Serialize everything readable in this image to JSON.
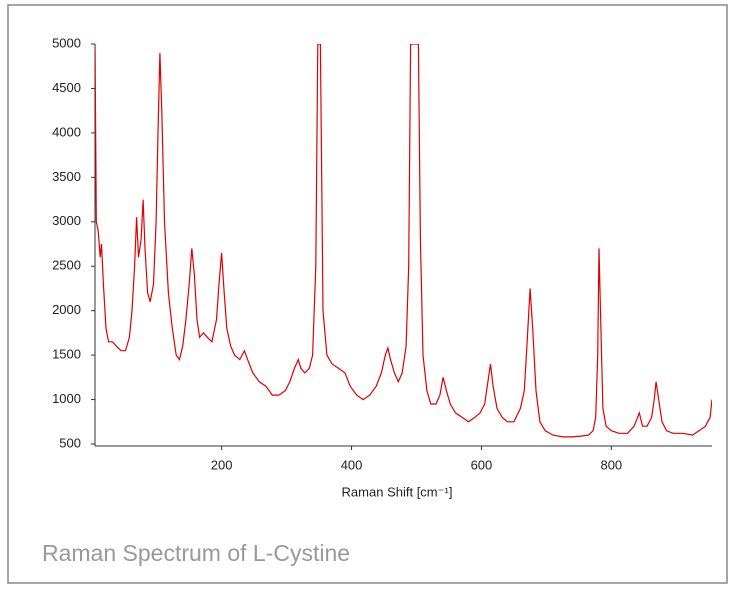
{
  "chart_data": {
    "type": "line",
    "title": "Raman Spectrum of L-Cystine",
    "x_label": "Raman Shift [cm⁻¹]",
    "color": "#e00000",
    "xlim": [
      5,
      955
    ],
    "xticks": [
      200,
      400,
      600,
      800
    ],
    "ylim": [
      500,
      5000
    ],
    "yticks": [
      500,
      1000,
      1500,
      2000,
      2500,
      3000,
      3500,
      4000,
      4500,
      5000
    ],
    "x": [
      5,
      7,
      10,
      13,
      15,
      18,
      22,
      26,
      32,
      38,
      45,
      52,
      58,
      62,
      66,
      69,
      72,
      76,
      79,
      82,
      86,
      90,
      95,
      99,
      102,
      105,
      108,
      112,
      118,
      124,
      130,
      135,
      140,
      145,
      150,
      154,
      158,
      162,
      166,
      172,
      178,
      185,
      192,
      196,
      200,
      204,
      208,
      214,
      220,
      228,
      235,
      240,
      248,
      258,
      268,
      278,
      288,
      298,
      305,
      312,
      318,
      322,
      328,
      335,
      340,
      345,
      348,
      352,
      356,
      362,
      370,
      380,
      390,
      398,
      408,
      418,
      428,
      438,
      446,
      452,
      456,
      460,
      466,
      472,
      478,
      484,
      488,
      491,
      503,
      506,
      510,
      516,
      522,
      530,
      536,
      541,
      546,
      552,
      560,
      570,
      580,
      590,
      598,
      605,
      610,
      614,
      618,
      624,
      632,
      640,
      650,
      660,
      666,
      670,
      675,
      679,
      684,
      690,
      698,
      710,
      725,
      740,
      755,
      765,
      772,
      776,
      779,
      781,
      784,
      787,
      792,
      800,
      812,
      825,
      835,
      843,
      848,
      855,
      862,
      866,
      869,
      873,
      878,
      885,
      895,
      910,
      925,
      935,
      945,
      952,
      955
    ],
    "values": [
      5000,
      3000,
      2900,
      2600,
      2750,
      2300,
      1800,
      1650,
      1650,
      1600,
      1550,
      1550,
      1700,
      2000,
      2500,
      3050,
      2600,
      2800,
      3250,
      2700,
      2200,
      2100,
      2300,
      3000,
      4000,
      4900,
      4200,
      3000,
      2200,
      1800,
      1500,
      1450,
      1600,
      1900,
      2300,
      2700,
      2400,
      1900,
      1700,
      1750,
      1700,
      1650,
      1900,
      2300,
      2650,
      2200,
      1800,
      1600,
      1500,
      1450,
      1550,
      1450,
      1300,
      1200,
      1150,
      1050,
      1050,
      1100,
      1200,
      1350,
      1450,
      1350,
      1300,
      1350,
      1500,
      2500,
      5000,
      5000,
      2000,
      1500,
      1400,
      1350,
      1300,
      1150,
      1050,
      1000,
      1050,
      1150,
      1300,
      1500,
      1580,
      1450,
      1300,
      1200,
      1300,
      1600,
      2500,
      5000,
      5000,
      2800,
      1500,
      1100,
      950,
      950,
      1050,
      1250,
      1100,
      950,
      850,
      800,
      750,
      800,
      850,
      950,
      1200,
      1400,
      1150,
      900,
      800,
      750,
      750,
      900,
      1100,
      1600,
      2250,
      1800,
      1100,
      750,
      650,
      600,
      580,
      580,
      590,
      600,
      650,
      800,
      1500,
      2700,
      1800,
      900,
      700,
      650,
      620,
      620,
      700,
      850,
      700,
      700,
      800,
      1000,
      1200,
      1000,
      750,
      650,
      620,
      620,
      600,
      650,
      700,
      800,
      1000
    ]
  }
}
